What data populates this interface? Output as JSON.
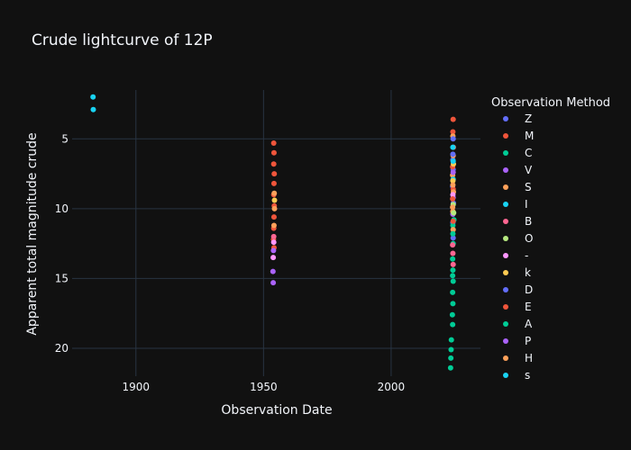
{
  "chart_data": {
    "type": "scatter",
    "title": "Crude lightcurve of 12P",
    "xlabel": "Observation Date",
    "ylabel": "Apparent total magnitude crude",
    "xlim": [
      1875,
      2035
    ],
    "ylim": [
      22,
      1.5
    ],
    "y_reversed": true,
    "x_ticks": [
      1900,
      1950,
      2000
    ],
    "y_ticks": [
      5,
      10,
      15,
      20
    ],
    "grid": true,
    "legend_title": "Observation Method",
    "legend_placement": "right",
    "series": [
      {
        "name": "Z",
        "color": "#636efa",
        "points": [
          [
            2024.2,
            6.5
          ],
          [
            2024.3,
            7.2
          ],
          [
            2024.1,
            8.4
          ],
          [
            2024.4,
            9.6
          ],
          [
            2024.2,
            11.0
          ],
          [
            2024.3,
            12.1
          ]
        ]
      },
      {
        "name": "M",
        "color": "#EF553B",
        "points": [
          [
            1954.0,
            5.3
          ],
          [
            1954.1,
            6.0
          ],
          [
            1954.0,
            6.8
          ],
          [
            1954.2,
            7.5
          ],
          [
            1954.1,
            8.2
          ],
          [
            1954.0,
            9.0
          ],
          [
            1954.2,
            9.8
          ],
          [
            1954.1,
            10.6
          ],
          [
            1954.0,
            11.4
          ],
          [
            1953.9,
            12.2
          ],
          [
            1954.1,
            12.8
          ],
          [
            2024.3,
            3.6
          ],
          [
            2024.2,
            4.5
          ],
          [
            2024.4,
            5.6
          ],
          [
            2024.1,
            7.0
          ],
          [
            2024.3,
            8.6
          ],
          [
            2024.2,
            10.2
          ]
        ]
      },
      {
        "name": "C",
        "color": "#00cc96",
        "points": [
          [
            2024.2,
            11.2
          ],
          [
            2024.3,
            12.5
          ],
          [
            2024.1,
            13.6
          ],
          [
            2024.2,
            14.4
          ],
          [
            2024.3,
            15.2
          ],
          [
            2024.1,
            16.0
          ],
          [
            2024.2,
            16.8
          ],
          [
            2024.0,
            17.6
          ],
          [
            2024.1,
            18.3
          ],
          [
            2023.6,
            19.4
          ],
          [
            2023.5,
            20.1
          ],
          [
            2023.4,
            20.7
          ],
          [
            2023.3,
            21.4
          ],
          [
            2024.6,
            10.8
          ]
        ]
      },
      {
        "name": "V",
        "color": "#ab63fa",
        "points": [
          [
            1953.7,
            14.5
          ],
          [
            1953.8,
            15.3
          ],
          [
            1953.9,
            13.0
          ],
          [
            2024.3,
            9.2
          ],
          [
            2024.2,
            10.4
          ]
        ]
      },
      {
        "name": "S",
        "color": "#FFA15A",
        "points": [
          [
            1954.2,
            8.9
          ],
          [
            1954.3,
            10.0
          ],
          [
            1954.1,
            11.2
          ],
          [
            2024.2,
            4.8
          ],
          [
            2024.3,
            6.2
          ],
          [
            2024.1,
            7.6
          ],
          [
            2024.4,
            8.8
          ],
          [
            2024.2,
            10.2
          ],
          [
            2024.3,
            11.5
          ]
        ]
      },
      {
        "name": "I",
        "color": "#19d3f3",
        "points": [
          [
            1883.2,
            2.0
          ],
          [
            1883.3,
            2.9
          ],
          [
            2024.2,
            5.6
          ],
          [
            2024.3,
            7.9
          ]
        ]
      },
      {
        "name": "B",
        "color": "#FF6692",
        "points": [
          [
            1954.0,
            12.0
          ],
          [
            2024.2,
            13.2
          ],
          [
            2024.3,
            14.0
          ],
          [
            2024.1,
            12.6
          ]
        ]
      },
      {
        "name": "O",
        "color": "#B6E880",
        "points": [
          [
            2024.5,
            10.3
          ],
          [
            2024.3,
            9.7
          ]
        ]
      },
      {
        "name": "-",
        "color": "#FF97FF",
        "points": [
          [
            1953.8,
            13.5
          ],
          [
            1954.0,
            12.4
          ],
          [
            2024.2,
            9.0
          ]
        ]
      },
      {
        "name": "k",
        "color": "#FECB52",
        "points": [
          [
            1954.3,
            9.4
          ],
          [
            2024.2,
            8.0
          ],
          [
            2024.4,
            6.8
          ]
        ]
      },
      {
        "name": "D",
        "color": "#636efa",
        "points": [
          [
            2024.3,
            5.0
          ],
          [
            2024.2,
            6.1
          ]
        ]
      },
      {
        "name": "E",
        "color": "#EF553B",
        "points": [
          [
            2024.1,
            9.3
          ],
          [
            2024.3,
            10.9
          ]
        ]
      },
      {
        "name": "A",
        "color": "#00cc96",
        "points": [
          [
            2024.2,
            11.8
          ],
          [
            2024.1,
            14.8
          ]
        ]
      },
      {
        "name": "P",
        "color": "#ab63fa",
        "points": [
          [
            2024.3,
            7.4
          ]
        ]
      },
      {
        "name": "H",
        "color": "#FFA15A",
        "points": [
          [
            2024.2,
            8.3
          ],
          [
            2024.1,
            9.9
          ]
        ]
      },
      {
        "name": "s",
        "color": "#19d3f3",
        "points": [
          [
            2024.3,
            6.6
          ]
        ]
      }
    ]
  }
}
